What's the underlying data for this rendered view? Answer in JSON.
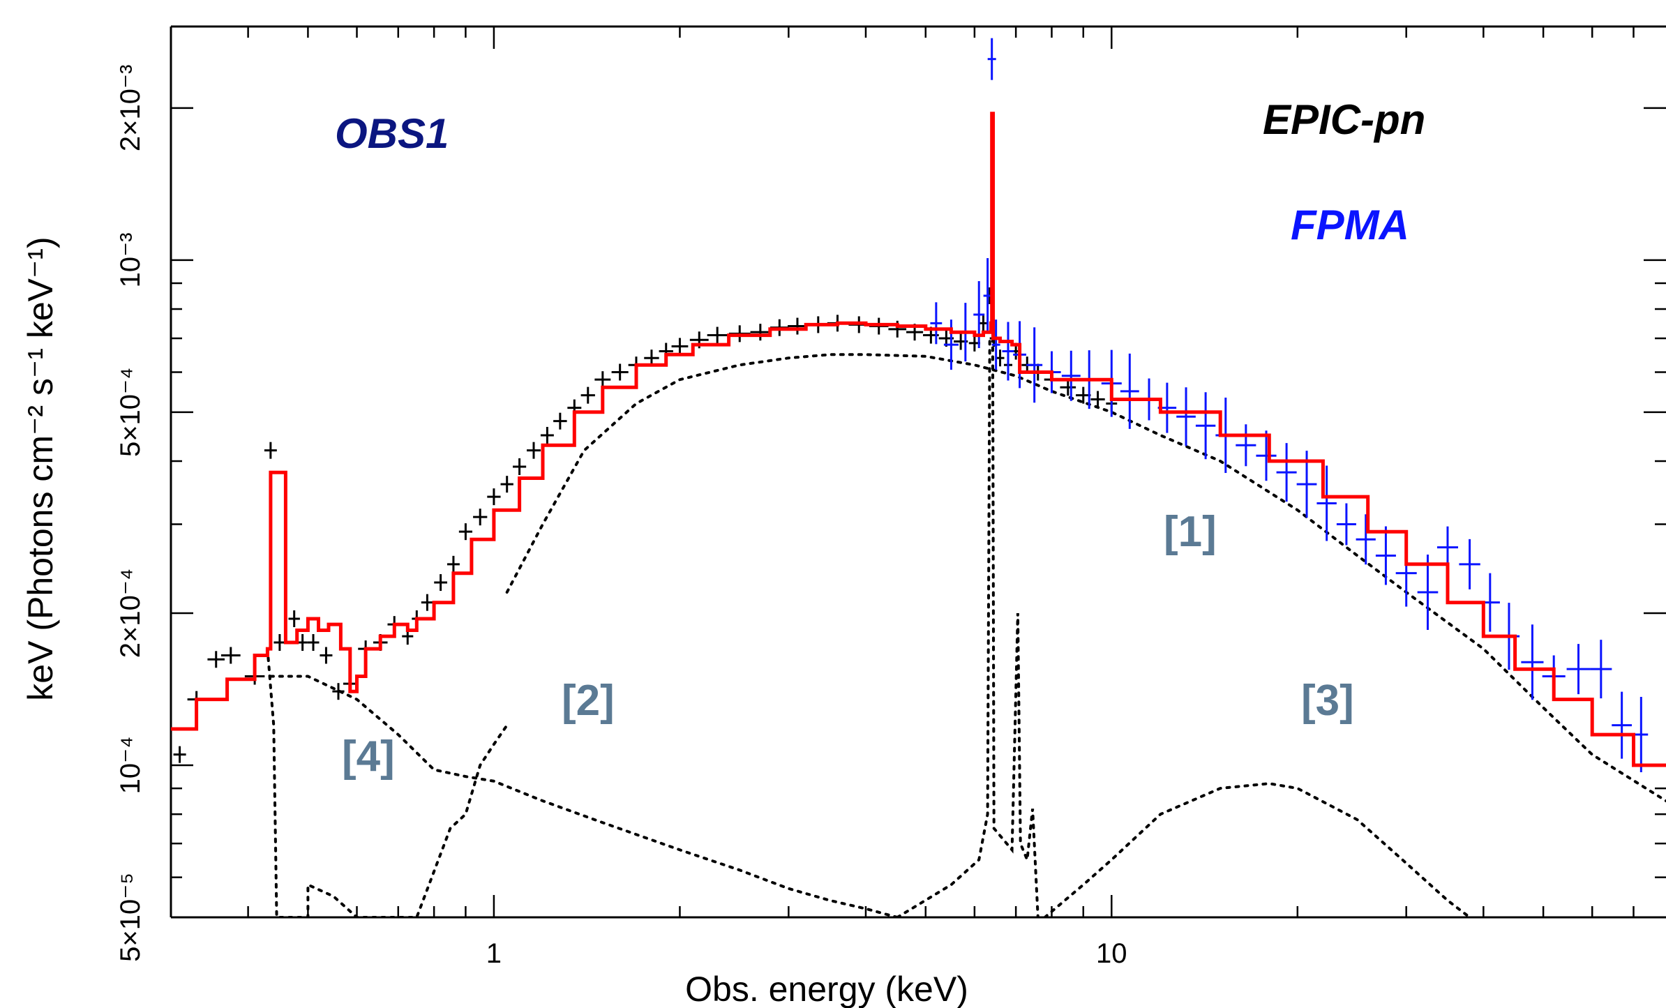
{
  "chart_data": {
    "type": "line",
    "xlabel": "Obs. energy (keV)",
    "ylabel": "keV (Photons cm⁻² s⁻¹ keV⁻¹)",
    "xscale": "log",
    "yscale": "log",
    "xlim": [
      0.3,
      79
    ],
    "ylim": [
      5e-05,
      0.0029
    ],
    "x_ticks": [
      {
        "value": 1,
        "label": "1"
      },
      {
        "value": 10,
        "label": "10"
      }
    ],
    "y_ticks": [
      {
        "value": 5e-05,
        "label": "5×10⁻⁵"
      },
      {
        "value": 0.0001,
        "label": "10⁻⁴"
      },
      {
        "value": 0.0002,
        "label": "2×10⁻⁴"
      },
      {
        "value": 0.0005,
        "label": "5×10⁻⁴"
      },
      {
        "value": 0.001,
        "label": "10⁻³"
      },
      {
        "value": 0.002,
        "label": "2×10⁻³"
      }
    ],
    "annotations": {
      "obs": "OBS1",
      "instrument": "EPIC-pn",
      "detector": "FPMA",
      "components": [
        "[1]",
        "[2]",
        "[3]",
        "[4]"
      ]
    },
    "colors": {
      "pn": "#000000",
      "fpma": "#0a14ff",
      "model": "#ff0000",
      "components": "#000000",
      "obs_label": "#0b1680",
      "component_labels": "#5b7a94"
    },
    "series": [
      {
        "name": "EPIC-pn",
        "style": "errorbar-cross",
        "points": [
          [
            0.31,
            0.000105
          ],
          [
            0.33,
            0.000135
          ],
          [
            0.355,
            0.000162
          ],
          [
            0.375,
            0.000165
          ],
          [
            0.41,
            0.00015
          ],
          [
            0.435,
            0.00042
          ],
          [
            0.45,
            0.000175
          ],
          [
            0.475,
            0.000195
          ],
          [
            0.49,
            0.000175
          ],
          [
            0.51,
            0.000175
          ],
          [
            0.535,
            0.000165
          ],
          [
            0.56,
            0.00014
          ],
          [
            0.585,
            0.000145
          ],
          [
            0.62,
            0.00017
          ],
          [
            0.655,
            0.000175
          ],
          [
            0.69,
            0.00019
          ],
          [
            0.725,
            0.00018
          ],
          [
            0.75,
            0.000195
          ],
          [
            0.78,
            0.00021
          ],
          [
            0.82,
            0.00023
          ],
          [
            0.86,
            0.00025
          ],
          [
            0.9,
            0.00029
          ],
          [
            0.95,
            0.00031
          ],
          [
            1.0,
            0.00034
          ],
          [
            1.05,
            0.00036
          ],
          [
            1.1,
            0.00039
          ],
          [
            1.16,
            0.00042
          ],
          [
            1.22,
            0.00045
          ],
          [
            1.28,
            0.00048
          ],
          [
            1.35,
            0.00051
          ],
          [
            1.42,
            0.00054
          ],
          [
            1.5,
            0.00058
          ],
          [
            1.6,
            0.0006
          ],
          [
            1.7,
            0.00062
          ],
          [
            1.8,
            0.00064
          ],
          [
            1.9,
            0.00066
          ],
          [
            2.0,
            0.000675
          ],
          [
            2.15,
            0.000695
          ],
          [
            2.3,
            0.00071
          ],
          [
            2.5,
            0.000715
          ],
          [
            2.7,
            0.00072
          ],
          [
            2.9,
            0.000735
          ],
          [
            3.1,
            0.00074
          ],
          [
            3.35,
            0.000745
          ],
          [
            3.6,
            0.00075
          ],
          [
            3.9,
            0.000745
          ],
          [
            4.2,
            0.00074
          ],
          [
            4.5,
            0.00073
          ],
          [
            4.8,
            0.00072
          ],
          [
            5.1,
            0.00071
          ],
          [
            5.4,
            0.0007
          ],
          [
            5.7,
            0.00069
          ],
          [
            6.0,
            0.000685
          ],
          [
            6.2,
            0.00075
          ],
          [
            6.35,
            0.00085
          ],
          [
            6.45,
            0.0007
          ],
          [
            6.6,
            0.00064
          ],
          [
            6.8,
            0.00062
          ],
          [
            7.0,
            0.00066
          ],
          [
            7.3,
            0.00062
          ],
          [
            7.6,
            0.0006
          ],
          [
            8.0,
            0.00058
          ],
          [
            8.5,
            0.00056
          ],
          [
            9.0,
            0.00054
          ],
          [
            9.5,
            0.00053
          ],
          [
            10.0,
            0.00052
          ]
        ]
      },
      {
        "name": "FPMA",
        "style": "errorbar-cross",
        "points": [
          [
            5.2,
            0.00075
          ],
          [
            5.5,
            0.00068
          ],
          [
            5.8,
            0.00072
          ],
          [
            6.1,
            0.00078
          ],
          [
            6.3,
            0.00085
          ],
          [
            6.4,
            0.0025
          ],
          [
            6.5,
            0.00068
          ],
          [
            6.8,
            0.00066
          ],
          [
            7.1,
            0.00065
          ],
          [
            7.5,
            0.00062
          ],
          [
            8.0,
            0.0006
          ],
          [
            8.6,
            0.00059
          ],
          [
            9.2,
            0.00058
          ],
          [
            10.0,
            0.00057
          ],
          [
            10.7,
            0.00055
          ],
          [
            11.5,
            0.00053
          ],
          [
            12.3,
            0.00051
          ],
          [
            13.2,
            0.00049
          ],
          [
            14.2,
            0.00047
          ],
          [
            15.3,
            0.00045
          ],
          [
            16.5,
            0.00043
          ],
          [
            17.8,
            0.00041
          ],
          [
            19.2,
            0.00038
          ],
          [
            20.7,
            0.00036
          ],
          [
            22.3,
            0.00033
          ],
          [
            24.0,
            0.0003
          ],
          [
            25.8,
            0.00028
          ],
          [
            27.8,
            0.00026
          ],
          [
            30.0,
            0.00024
          ],
          [
            32.5,
            0.00022
          ],
          [
            35.0,
            0.00027
          ],
          [
            38.0,
            0.00025
          ],
          [
            41.0,
            0.00021
          ],
          [
            44.0,
            0.00018
          ],
          [
            48.0,
            0.00016
          ],
          [
            52.0,
            0.00015
          ],
          [
            57.0,
            0.000155
          ],
          [
            62.0,
            0.000155
          ],
          [
            67.0,
            0.00012
          ],
          [
            72.0,
            0.000115
          ]
        ]
      },
      {
        "name": "model",
        "style": "step",
        "points": [
          [
            0.3,
            0.000118
          ],
          [
            0.32,
            0.000118
          ],
          [
            0.33,
            0.000135
          ],
          [
            0.37,
            0.000148
          ],
          [
            0.41,
            0.000165
          ],
          [
            0.43,
            0.00017
          ],
          [
            0.435,
            0.00038
          ],
          [
            0.455,
            0.00038
          ],
          [
            0.46,
            0.000175
          ],
          [
            0.48,
            0.000185
          ],
          [
            0.5,
            0.000195
          ],
          [
            0.52,
            0.000185
          ],
          [
            0.54,
            0.00019
          ],
          [
            0.565,
            0.00017
          ],
          [
            0.585,
            0.00014
          ],
          [
            0.6,
            0.00015
          ],
          [
            0.62,
            0.00017
          ],
          [
            0.655,
            0.00018
          ],
          [
            0.69,
            0.00019
          ],
          [
            0.725,
            0.000185
          ],
          [
            0.75,
            0.000195
          ],
          [
            0.8,
            0.00021
          ],
          [
            0.86,
            0.00024
          ],
          [
            0.92,
            0.00028
          ],
          [
            1.0,
            0.00032
          ],
          [
            1.1,
            0.00037
          ],
          [
            1.2,
            0.00043
          ],
          [
            1.35,
            0.0005
          ],
          [
            1.5,
            0.00056
          ],
          [
            1.7,
            0.00062
          ],
          [
            1.9,
            0.00065
          ],
          [
            2.1,
            0.00068
          ],
          [
            2.4,
            0.00071
          ],
          [
            2.8,
            0.00073
          ],
          [
            3.2,
            0.000745
          ],
          [
            3.6,
            0.00075
          ],
          [
            4.0,
            0.000745
          ],
          [
            4.5,
            0.00074
          ],
          [
            5.0,
            0.00073
          ],
          [
            5.5,
            0.00072
          ],
          [
            6.0,
            0.00071
          ],
          [
            6.2,
            0.00072
          ],
          [
            6.38,
            0.00075
          ],
          [
            6.4,
            0.00195
          ],
          [
            6.43,
            0.0007
          ],
          [
            6.6,
            0.00069
          ],
          [
            6.9,
            0.00068
          ],
          [
            7.1,
            0.0006
          ],
          [
            8.0,
            0.00058
          ],
          [
            10.0,
            0.00053
          ],
          [
            12.0,
            0.0005
          ],
          [
            15.0,
            0.00045
          ],
          [
            18.0,
            0.0004
          ],
          [
            22.0,
            0.00034
          ],
          [
            26.0,
            0.00029
          ],
          [
            30.0,
            0.00025
          ],
          [
            35.0,
            0.00021
          ],
          [
            40.0,
            0.00018
          ],
          [
            45.0,
            0.000155
          ],
          [
            52.0,
            0.000135
          ],
          [
            60.0,
            0.000115
          ],
          [
            70.0,
            0.0001
          ],
          [
            79.0,
            0.0001
          ]
        ]
      },
      {
        "name": "[1]",
        "style": "dotted",
        "points": [
          [
            1.05,
            0.00022
          ],
          [
            1.2,
            0.0003
          ],
          [
            1.4,
            0.00042
          ],
          [
            1.7,
            0.00052
          ],
          [
            2.0,
            0.00058
          ],
          [
            2.5,
            0.00062
          ],
          [
            3.0,
            0.00064
          ],
          [
            3.5,
            0.00065
          ],
          [
            4.0,
            0.00065
          ],
          [
            5.0,
            0.000645
          ],
          [
            6.0,
            0.00062
          ],
          [
            7.0,
            0.00059
          ],
          [
            8.0,
            0.00055
          ],
          [
            10.0,
            0.0005
          ],
          [
            12.0,
            0.00045
          ],
          [
            15.0,
            0.0004
          ],
          [
            20.0,
            0.00032
          ],
          [
            25.0,
            0.00026
          ],
          [
            30.0,
            0.00022
          ],
          [
            40.0,
            0.00017
          ],
          [
            50.0,
            0.00013
          ],
          [
            60.0,
            0.000105
          ],
          [
            79.0,
            8.5e-05
          ]
        ]
      },
      {
        "name": "[2]",
        "style": "dotted",
        "points": [
          [
            0.435,
            0.00015
          ],
          [
            0.5,
            0.00015
          ],
          [
            0.6,
            0.000135
          ],
          [
            0.7,
            0.000115
          ],
          [
            0.8,
            9.8e-05
          ],
          [
            0.9,
            9.5e-05
          ],
          [
            1.0,
            9.3e-05
          ],
          [
            1.2,
            8.5e-05
          ],
          [
            1.5,
            7.7e-05
          ],
          [
            2.0,
            6.8e-05
          ],
          [
            2.5,
            6.2e-05
          ],
          [
            3.0,
            5.7e-05
          ],
          [
            3.5,
            5.4e-05
          ],
          [
            4.0,
            5.2e-05
          ],
          [
            4.5,
            5e-05
          ]
        ]
      },
      {
        "name": "[3]",
        "style": "dotted",
        "points": [
          [
            7.8,
            5e-05
          ],
          [
            9.0,
            5.8e-05
          ],
          [
            10.0,
            6.5e-05
          ],
          [
            12.0,
            8e-05
          ],
          [
            15.0,
            9e-05
          ],
          [
            18.0,
            9.2e-05
          ],
          [
            20.0,
            9e-05
          ],
          [
            25.0,
            7.8e-05
          ],
          [
            30.0,
            6.4e-05
          ],
          [
            35.0,
            5.4e-05
          ],
          [
            38.0,
            5e-05
          ]
        ]
      },
      {
        "name": "[4]",
        "style": "dotted",
        "points": [
          [
            0.43,
            0.00017
          ],
          [
            0.44,
            0.00012
          ],
          [
            0.445,
            5e-05
          ],
          [
            0.5,
            5e-05
          ],
          [
            0.5,
            5.8e-05
          ],
          [
            0.55,
            5.5e-05
          ],
          [
            0.6,
            5e-05
          ],
          [
            0.75,
            5e-05
          ],
          [
            0.85,
            7.5e-05
          ],
          [
            0.9,
            8e-05
          ],
          [
            0.95,
            0.0001
          ],
          [
            1.0,
            0.00011
          ],
          [
            1.05,
            0.00012
          ],
          [
            4.5,
            5e-05
          ],
          [
            5.5,
            5.8e-05
          ],
          [
            6.1,
            6.5e-05
          ],
          [
            6.3,
            8e-05
          ],
          [
            6.35,
            0.0007
          ],
          [
            6.42,
            0.0007
          ],
          [
            6.45,
            7.5e-05
          ],
          [
            6.9,
            6.8e-05
          ],
          [
            7.05,
            0.0002
          ],
          [
            7.12,
            7e-05
          ],
          [
            7.3,
            6.5e-05
          ],
          [
            7.45,
            8.2e-05
          ],
          [
            7.6,
            5e-05
          ]
        ]
      }
    ]
  }
}
